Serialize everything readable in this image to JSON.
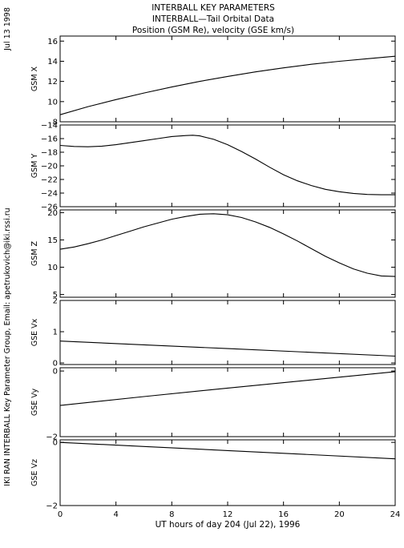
{
  "side_date": "Jul 13 1998",
  "side_credit": "IKI RAN INTERBALL Key Parameter Group, Email: apetrukovich@iki.rssi.ru",
  "chart_data": {
    "type": "line",
    "title_lines": [
      "INTERBALL KEY PARAMETERS",
      "INTERBALL—Tail Orbital Data",
      "Position (GSM Re), velocity (GSE km/s)"
    ],
    "xlabel": "UT hours of day 204 (Jul 22), 1996",
    "xlim": [
      0,
      24
    ],
    "xticks": [
      0,
      4,
      8,
      12,
      16,
      20,
      24
    ],
    "panels": [
      {
        "ylabel": "GSM X",
        "ylim": [
          8,
          16.5
        ],
        "yticks": [
          8,
          10,
          12,
          14,
          16
        ],
        "x": [
          0,
          2,
          4,
          6,
          8,
          10,
          12,
          14,
          16,
          18,
          20,
          22,
          24
        ],
        "y": [
          8.7,
          9.5,
          10.2,
          10.85,
          11.45,
          12.0,
          12.5,
          12.95,
          13.35,
          13.7,
          14.0,
          14.25,
          14.5
        ]
      },
      {
        "ylabel": "GSM Y",
        "ylim": [
          -26,
          -14
        ],
        "yticks": [
          -26,
          -24,
          -22,
          -20,
          -18,
          -16,
          -14
        ],
        "x": [
          0,
          1,
          2,
          3,
          4,
          5,
          6,
          7,
          8,
          9,
          9.5,
          10,
          11,
          12,
          13,
          14,
          15,
          16,
          17,
          18,
          19,
          20,
          21,
          22,
          23,
          24
        ],
        "y": [
          -17.0,
          -17.15,
          -17.2,
          -17.1,
          -16.9,
          -16.6,
          -16.3,
          -16.0,
          -15.7,
          -15.55,
          -15.5,
          -15.6,
          -16.1,
          -16.9,
          -17.9,
          -19.0,
          -20.2,
          -21.3,
          -22.2,
          -22.9,
          -23.45,
          -23.8,
          -24.05,
          -24.2,
          -24.25,
          -24.25
        ]
      },
      {
        "ylabel": "GSM Z",
        "ylim": [
          4.5,
          20.5
        ],
        "yticks": [
          5,
          10,
          15,
          20
        ],
        "x": [
          0,
          1,
          2,
          3,
          4,
          5,
          6,
          7,
          8,
          9,
          10,
          11,
          12,
          13,
          14,
          15,
          16,
          17,
          18,
          19,
          20,
          21,
          22,
          23,
          24
        ],
        "y": [
          13.3,
          13.7,
          14.3,
          15.0,
          15.8,
          16.6,
          17.4,
          18.1,
          18.8,
          19.3,
          19.7,
          19.8,
          19.6,
          19.1,
          18.3,
          17.3,
          16.1,
          14.8,
          13.4,
          12.0,
          10.8,
          9.7,
          8.9,
          8.4,
          8.3
        ]
      },
      {
        "ylabel": "GSE Vx",
        "ylim": [
          -0.05,
          2
        ],
        "yticks": [
          0,
          1,
          2
        ],
        "x": [
          0,
          6,
          12,
          18,
          24
        ],
        "y": [
          0.7,
          0.58,
          0.46,
          0.34,
          0.22
        ]
      },
      {
        "ylabel": "GSE Vy",
        "ylim": [
          -2,
          0.1
        ],
        "yticks": [
          -2,
          0
        ],
        "x": [
          0,
          6,
          12,
          18,
          24
        ],
        "y": [
          -1.05,
          -0.78,
          -0.52,
          -0.27,
          -0.02
        ]
      },
      {
        "ylabel": "GSE Vz",
        "ylim": [
          -2,
          0.08
        ],
        "yticks": [
          -2,
          0
        ],
        "x": [
          0,
          6,
          12,
          18,
          24
        ],
        "y": [
          0.0,
          -0.13,
          -0.26,
          -0.39,
          -0.52
        ]
      }
    ]
  }
}
